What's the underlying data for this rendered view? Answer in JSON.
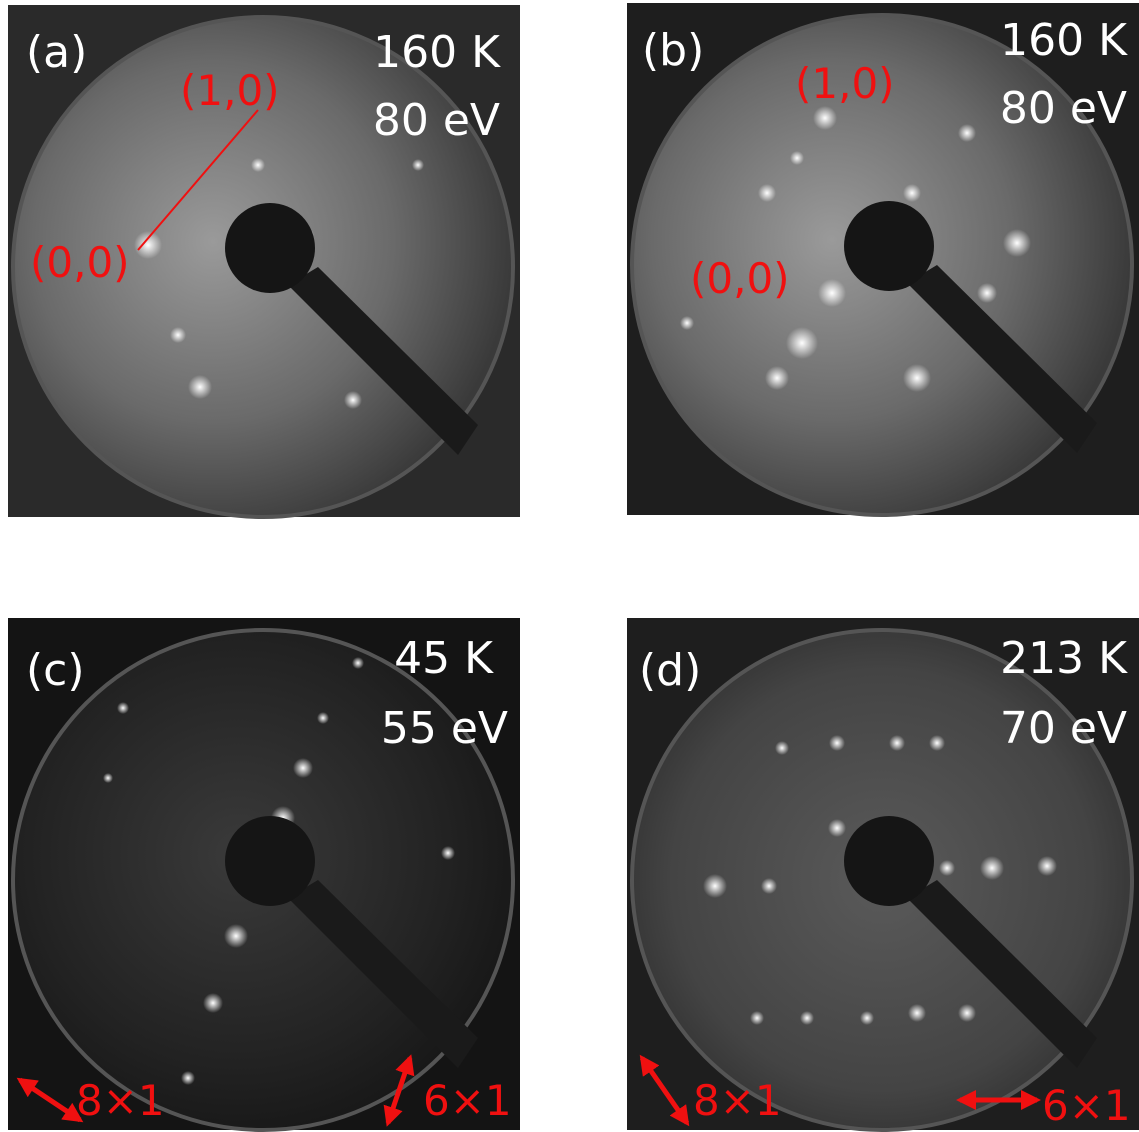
{
  "panels": [
    {
      "label": "(a)",
      "temperature": "160 K",
      "energy": "80 eV",
      "annotations": [
        "(1,0)",
        "(0,0)"
      ]
    },
    {
      "label": "(b)",
      "temperature": "160 K",
      "energy": "80 eV",
      "annotations": [
        "(1,0)",
        "(0,0)"
      ]
    },
    {
      "label": "(c)",
      "temperature": "45 K",
      "energy": "55 eV",
      "annotations": [
        "8×1",
        "6×1"
      ]
    },
    {
      "label": "(d)",
      "temperature": "213 K",
      "energy": "70 eV",
      "annotations": [
        "8×1",
        "6×1"
      ]
    }
  ]
}
